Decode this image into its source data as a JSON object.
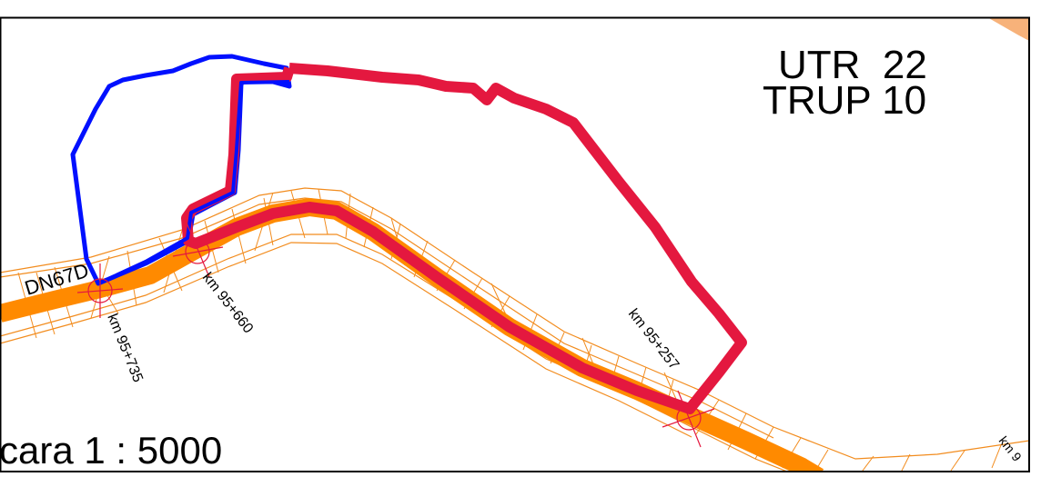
{
  "map": {
    "title_line1": "UTR  22",
    "title_line2": "TRUP 10",
    "scale_label": "scara 1 : 5000",
    "road_label": "DN67D",
    "km_markers": [
      {
        "label": "km 95+735"
      },
      {
        "label": "km 95+660"
      },
      {
        "label": "km 95+257"
      },
      {
        "label": "km 9"
      }
    ],
    "colors": {
      "road": "#ff8a00",
      "road_hatch": "#f28c1e",
      "boundary_red": "#e4183f",
      "boundary_blue": "#0010ff",
      "frame": "#000000",
      "corner_fill": "#f7b27a",
      "marker": "#e4183f"
    }
  }
}
